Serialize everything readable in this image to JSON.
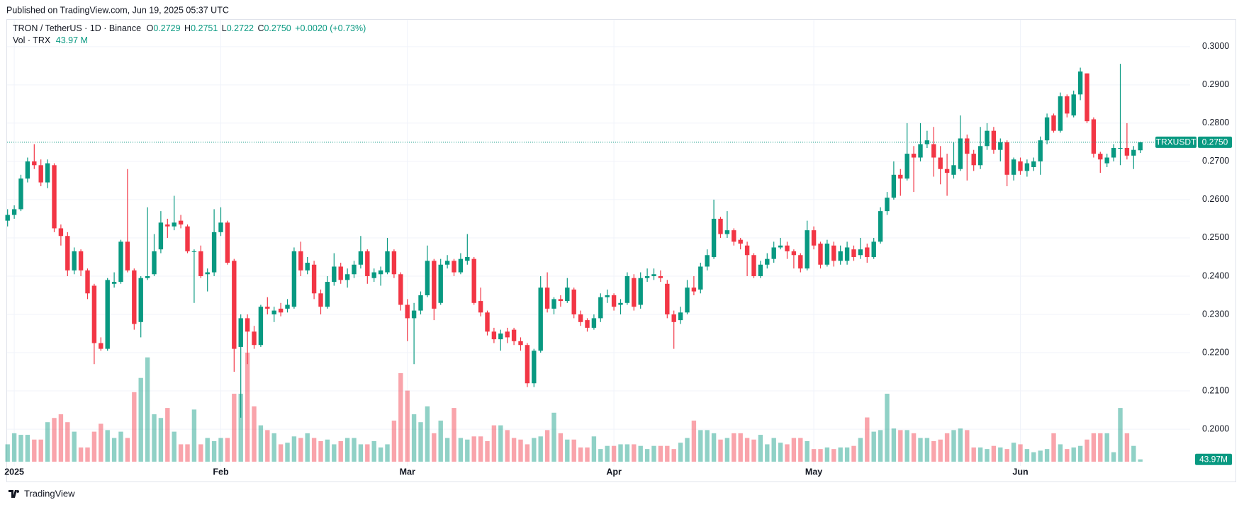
{
  "published": "Published on TradingView.com, Jun 19, 2025 05:37 UTC",
  "brand": "TradingView",
  "chart_data": {
    "type": "candlestick",
    "symbol": "TRON / TetherUS · 1D · Binance",
    "ohlc_legend": [
      {
        "label": "O",
        "value": "0.2729"
      },
      {
        "label": "H",
        "value": "0.2751"
      },
      {
        "label": "L",
        "value": "0.2722"
      },
      {
        "label": "C",
        "value": "0.2750"
      }
    ],
    "change": "+0.0020 (+0.73%)",
    "volume_title": "Vol · TRX",
    "volume_legend": "43.97 M",
    "ticker": "TRXUSDT",
    "last_price_label": "0.2750",
    "last_volume_label": "43.97M",
    "up_color": "#089981",
    "down_color": "#f23645",
    "grid": true,
    "ylim": [
      0.1915,
      0.307
    ],
    "yticks": [
      {
        "value": 0.2,
        "label": "0.2000"
      },
      {
        "value": 0.21,
        "label": "0.2100"
      },
      {
        "value": 0.22,
        "label": "0.2200"
      },
      {
        "value": 0.23,
        "label": "0.2300"
      },
      {
        "value": 0.24,
        "label": "0.2400"
      },
      {
        "value": 0.25,
        "label": "0.2500"
      },
      {
        "value": 0.26,
        "label": "0.2600"
      },
      {
        "value": 0.27,
        "label": "0.2700"
      },
      {
        "value": 0.28,
        "label": "0.2800"
      },
      {
        "value": 0.29,
        "label": "0.2900"
      },
      {
        "value": 0.3,
        "label": "0.3000"
      }
    ],
    "categories": [
      null,
      "2025",
      null,
      null,
      null,
      null,
      null,
      null,
      null,
      null,
      null,
      null,
      null,
      null,
      null,
      null,
      null,
      null,
      null,
      null,
      null,
      null,
      null,
      null,
      null,
      null,
      null,
      null,
      null,
      null,
      null,
      null,
      "Feb",
      null,
      null,
      null,
      null,
      null,
      null,
      null,
      null,
      null,
      null,
      null,
      null,
      null,
      null,
      null,
      null,
      null,
      null,
      null,
      null,
      null,
      null,
      null,
      null,
      null,
      null,
      null,
      "Mar",
      null,
      null,
      null,
      null,
      null,
      null,
      null,
      null,
      null,
      null,
      null,
      null,
      null,
      null,
      null,
      null,
      null,
      null,
      null,
      null,
      null,
      null,
      null,
      null,
      null,
      null,
      null,
      null,
      null,
      null,
      "Apr",
      null,
      null,
      null,
      null,
      null,
      null,
      null,
      null,
      null,
      null,
      null,
      null,
      null,
      null,
      null,
      null,
      null,
      null,
      null,
      null,
      null,
      null,
      null,
      null,
      null,
      null,
      null,
      null,
      null,
      "May",
      null,
      null,
      null,
      null,
      null,
      null,
      null,
      null,
      null,
      null,
      null,
      null,
      null,
      null,
      null,
      null,
      null,
      null,
      null,
      null,
      null,
      null,
      null,
      null,
      null,
      null,
      null,
      null,
      null,
      null,
      "Jun",
      null,
      null,
      null,
      null,
      null,
      null,
      null,
      null,
      null,
      null,
      null,
      null,
      null,
      null,
      null,
      null,
      null,
      null
    ],
    "open": [
      0.2545,
      0.256,
      0.2575,
      0.2655,
      0.27,
      0.269,
      0.2645,
      0.269,
      0.2525,
      0.2505,
      0.2415,
      0.2465,
      0.2415,
      0.2375,
      0.2225,
      0.221,
      0.238,
      0.2385,
      0.249,
      0.2415,
      0.228,
      0.2395,
      0.2405,
      0.247,
      0.2535,
      0.253,
      0.2545,
      0.253,
      0.2465,
      0.2465,
      0.2405,
      0.241,
      0.2515,
      0.254,
      0.244,
      0.2215,
      0.229,
      0.2255,
      0.222,
      0.232,
      0.23,
      0.2315,
      0.2315,
      0.232,
      0.2465,
      0.2415,
      0.243,
      0.2355,
      0.232,
      0.2385,
      0.2425,
      0.239,
      0.2405,
      0.243,
      0.2465,
      0.2395,
      0.2405,
      0.241,
      0.2465,
      0.2405,
      0.2325,
      0.229,
      0.231,
      0.235,
      0.244,
      0.233,
      0.243,
      0.244,
      0.241,
      0.244,
      0.2445,
      0.2335,
      0.2305,
      0.2255,
      0.2235,
      0.2255,
      0.226,
      0.223,
      0.222,
      0.212,
      0.2205,
      0.237,
      0.2315,
      0.234,
      0.2335,
      0.2365,
      0.23,
      0.2285,
      0.2265,
      0.229,
      0.2345,
      0.235,
      0.2325,
      0.233,
      0.2395,
      0.2325,
      0.2395,
      0.24,
      0.24,
      0.238,
      0.23,
      0.2285,
      0.2305,
      0.237,
      0.2365,
      0.2425,
      0.245,
      0.255,
      0.251,
      0.252,
      0.2495,
      0.248,
      0.2455,
      0.24,
      0.243,
      0.2445,
      0.2475,
      0.248,
      0.2465,
      0.2455,
      0.242,
      0.252,
      0.2485,
      0.243,
      0.248,
      0.244,
      0.244,
      0.247,
      0.2455,
      0.2475,
      0.245,
      0.249,
      0.257,
      0.2605,
      0.2665,
      0.2655,
      0.272,
      0.271,
      0.2745,
      0.2745,
      0.271,
      0.268,
      0.2665,
      0.268,
      0.276,
      0.272,
      0.269,
      0.274,
      0.278,
      0.273,
      0.275,
      0.2665,
      0.27,
      0.2675,
      0.2685,
      0.27,
      0.2755,
      0.282,
      0.278,
      0.287,
      0.282,
      0.2875,
      0.293,
      0.281,
      0.272,
      0.2695,
      0.271,
      0.2735,
      0.2735,
      0.2715,
      0.2729
    ],
    "high": [
      0.2575,
      0.2585,
      0.2665,
      0.271,
      0.2745,
      0.2705,
      0.2705,
      0.2695,
      0.2535,
      0.2515,
      0.2475,
      0.247,
      0.242,
      0.238,
      0.224,
      0.2395,
      0.241,
      0.2495,
      0.268,
      0.242,
      0.24,
      0.258,
      0.251,
      0.257,
      0.255,
      0.261,
      0.256,
      0.2535,
      0.247,
      0.248,
      0.242,
      0.2575,
      0.258,
      0.2545,
      0.2445,
      0.23,
      0.23,
      0.227,
      0.2325,
      0.2345,
      0.232,
      0.233,
      0.234,
      0.2475,
      0.249,
      0.245,
      0.244,
      0.2365,
      0.24,
      0.246,
      0.2435,
      0.242,
      0.244,
      0.2505,
      0.247,
      0.242,
      0.2425,
      0.25,
      0.247,
      0.241,
      0.234,
      0.233,
      0.236,
      0.248,
      0.2445,
      0.2445,
      0.2455,
      0.2445,
      0.246,
      0.251,
      0.245,
      0.237,
      0.231,
      0.2265,
      0.226,
      0.2265,
      0.2265,
      0.224,
      0.2225,
      0.221,
      0.24,
      0.241,
      0.2345,
      0.235,
      0.2395,
      0.237,
      0.231,
      0.229,
      0.23,
      0.2355,
      0.2365,
      0.2355,
      0.234,
      0.241,
      0.2405,
      0.241,
      0.242,
      0.242,
      0.2415,
      0.239,
      0.231,
      0.232,
      0.239,
      0.24,
      0.2435,
      0.247,
      0.26,
      0.2555,
      0.257,
      0.2525,
      0.25,
      0.249,
      0.246,
      0.244,
      0.246,
      0.249,
      0.25,
      0.249,
      0.247,
      0.246,
      0.2545,
      0.253,
      0.249,
      0.2495,
      0.249,
      0.248,
      0.249,
      0.248,
      0.25,
      0.2485,
      0.25,
      0.258,
      0.262,
      0.27,
      0.268,
      0.28,
      0.274,
      0.28,
      0.278,
      0.279,
      0.274,
      0.272,
      0.275,
      0.282,
      0.277,
      0.273,
      0.279,
      0.28,
      0.279,
      0.276,
      0.2755,
      0.271,
      0.271,
      0.2705,
      0.271,
      0.2765,
      0.2825,
      0.2825,
      0.288,
      0.2875,
      0.2885,
      0.2945,
      0.293,
      0.2815,
      0.2725,
      0.272,
      0.2745,
      0.2955,
      0.28,
      0.274,
      0.2751
    ],
    "low": [
      0.253,
      0.255,
      0.257,
      0.2645,
      0.268,
      0.2635,
      0.263,
      0.2515,
      0.248,
      0.24,
      0.2405,
      0.24,
      0.234,
      0.217,
      0.2205,
      0.2205,
      0.237,
      0.238,
      0.241,
      0.226,
      0.224,
      0.239,
      0.24,
      0.246,
      0.25,
      0.252,
      0.2525,
      0.246,
      0.233,
      0.2395,
      0.236,
      0.24,
      0.2505,
      0.243,
      0.215,
      0.203,
      0.217,
      0.221,
      0.2215,
      0.23,
      0.228,
      0.2295,
      0.2305,
      0.2315,
      0.24,
      0.2405,
      0.234,
      0.23,
      0.2315,
      0.2375,
      0.238,
      0.237,
      0.2395,
      0.242,
      0.238,
      0.2385,
      0.2375,
      0.2405,
      0.2395,
      0.231,
      0.223,
      0.217,
      0.23,
      0.2345,
      0.2285,
      0.2325,
      0.242,
      0.24,
      0.2405,
      0.243,
      0.2325,
      0.2295,
      0.2245,
      0.2225,
      0.2205,
      0.2225,
      0.222,
      0.2205,
      0.211,
      0.211,
      0.22,
      0.2305,
      0.23,
      0.232,
      0.233,
      0.229,
      0.227,
      0.2255,
      0.226,
      0.228,
      0.233,
      0.231,
      0.23,
      0.2325,
      0.231,
      0.2315,
      0.2385,
      0.239,
      0.2385,
      0.229,
      0.221,
      0.2275,
      0.23,
      0.235,
      0.2355,
      0.2415,
      0.2445,
      0.25,
      0.25,
      0.248,
      0.247,
      0.24,
      0.2395,
      0.2395,
      0.242,
      0.2435,
      0.247,
      0.2445,
      0.242,
      0.241,
      0.2415,
      0.247,
      0.242,
      0.2425,
      0.2425,
      0.243,
      0.243,
      0.244,
      0.2445,
      0.2435,
      0.2445,
      0.2485,
      0.256,
      0.26,
      0.261,
      0.265,
      0.262,
      0.27,
      0.2735,
      0.266,
      0.264,
      0.261,
      0.2655,
      0.2675,
      0.265,
      0.2675,
      0.268,
      0.273,
      0.272,
      0.27,
      0.2635,
      0.265,
      0.2665,
      0.266,
      0.2675,
      0.2665,
      0.2745,
      0.2775,
      0.2775,
      0.2815,
      0.2815,
      0.286,
      0.28,
      0.271,
      0.267,
      0.2685,
      0.27,
      0.269,
      0.2705,
      0.268,
      0.2722
    ],
    "close": [
      0.256,
      0.2575,
      0.2655,
      0.27,
      0.269,
      0.2645,
      0.2695,
      0.2525,
      0.2505,
      0.2415,
      0.2465,
      0.2415,
      0.2355,
      0.2225,
      0.221,
      0.239,
      0.2385,
      0.249,
      0.2415,
      0.2275,
      0.2395,
      0.24,
      0.2465,
      0.254,
      0.253,
      0.254,
      0.2535,
      0.2465,
      0.2465,
      0.24,
      0.241,
      0.2515,
      0.254,
      0.2435,
      0.221,
      0.229,
      0.2255,
      0.222,
      0.232,
      0.2315,
      0.231,
      0.2305,
      0.2325,
      0.2465,
      0.2415,
      0.2435,
      0.2355,
      0.232,
      0.2385,
      0.2425,
      0.239,
      0.2405,
      0.243,
      0.2465,
      0.24,
      0.241,
      0.2415,
      0.2465,
      0.2405,
      0.2325,
      0.229,
      0.231,
      0.235,
      0.244,
      0.2315,
      0.243,
      0.244,
      0.241,
      0.2445,
      0.245,
      0.233,
      0.2305,
      0.2255,
      0.2235,
      0.225,
      0.224,
      0.223,
      0.222,
      0.212,
      0.2205,
      0.237,
      0.2315,
      0.234,
      0.2335,
      0.237,
      0.23,
      0.228,
      0.2265,
      0.229,
      0.2345,
      0.235,
      0.232,
      0.233,
      0.24,
      0.232,
      0.2395,
      0.24,
      0.2405,
      0.2395,
      0.23,
      0.228,
      0.2305,
      0.237,
      0.236,
      0.2425,
      0.2455,
      0.255,
      0.251,
      0.252,
      0.249,
      0.2485,
      0.2455,
      0.24,
      0.243,
      0.2445,
      0.2475,
      0.248,
      0.2465,
      0.2455,
      0.242,
      0.252,
      0.248,
      0.243,
      0.2485,
      0.244,
      0.2465,
      0.2475,
      0.245,
      0.247,
      0.245,
      0.249,
      0.257,
      0.2605,
      0.2665,
      0.2655,
      0.272,
      0.271,
      0.2745,
      0.2755,
      0.271,
      0.268,
      0.267,
      0.269,
      0.276,
      0.272,
      0.269,
      0.274,
      0.278,
      0.273,
      0.275,
      0.2665,
      0.2705,
      0.2675,
      0.2695,
      0.27,
      0.2755,
      0.2815,
      0.278,
      0.287,
      0.2825,
      0.2875,
      0.2935,
      0.2805,
      0.272,
      0.2705,
      0.271,
      0.2735,
      0.2735,
      0.2715,
      0.273,
      0.275
    ],
    "volume": [
      330,
      540,
      510,
      510,
      420,
      420,
      750,
      830,
      900,
      750,
      570,
      270,
      270,
      570,
      720,
      600,
      450,
      570,
      450,
      1320,
      1590,
      1980,
      900,
      830,
      1020,
      570,
      330,
      330,
      990,
      330,
      450,
      390,
      450,
      450,
      1290,
      1290,
      2070,
      1050,
      690,
      600,
      540,
      330,
      360,
      480,
      450,
      540,
      450,
      390,
      420,
      330,
      390,
      450,
      450,
      330,
      330,
      390,
      270,
      330,
      780,
      1680,
      1350,
      900,
      750,
      1050,
      540,
      780,
      450,
      1020,
      450,
      420,
      480,
      480,
      390,
      690,
      690,
      600,
      450,
      420,
      330,
      450,
      480,
      600,
      930,
      540,
      420,
      420,
      270,
      270,
      480,
      240,
      300,
      300,
      330,
      330,
      330,
      300,
      240,
      300,
      300,
      300,
      240,
      360,
      450,
      780,
      600,
      600,
      540,
      420,
      450,
      540,
      540,
      450,
      420,
      510,
      330,
      450,
      360,
      330,
      450,
      450,
      390,
      240,
      240,
      270,
      240,
      270,
      270,
      300,
      450,
      840,
      570,
      600,
      1290,
      630,
      600,
      600,
      540,
      450,
      450,
      390,
      420,
      540,
      600,
      630,
      600,
      270,
      270,
      240,
      300,
      270,
      240,
      360,
      330,
      240,
      180,
      210,
      240,
      540,
      330,
      240,
      270,
      300,
      420,
      540,
      540,
      540,
      180,
      1020,
      540,
      300,
      43.97
    ]
  }
}
